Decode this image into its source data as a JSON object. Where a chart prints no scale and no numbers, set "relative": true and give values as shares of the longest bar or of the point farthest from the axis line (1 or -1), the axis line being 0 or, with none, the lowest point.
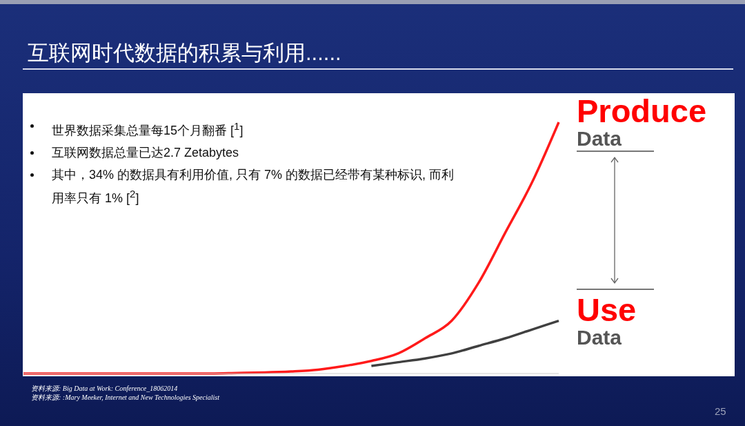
{
  "chart_data": {
    "type": "line",
    "title": "互联网时代数据的积累与利用......",
    "relative": true,
    "marker": "none",
    "legend": "right",
    "grid": false,
    "categories": [
      null,
      null,
      null,
      null,
      null,
      null,
      null,
      null,
      null,
      null,
      null,
      null,
      null,
      null,
      null,
      null,
      null,
      null,
      null,
      null,
      null
    ],
    "series": [
      {
        "name": "Use Data",
        "color": "#404040",
        "values": [
          null,
          null,
          null,
          null,
          null,
          null,
          null,
          null,
          null,
          null,
          null,
          null,
          null,
          0.03,
          0.045,
          0.06,
          0.08,
          0.11,
          0.14,
          0.175,
          0.21
        ]
      },
      {
        "name": "Produce Data",
        "color": "#ff1a1a",
        "values": [
          0,
          0,
          0,
          0,
          0,
          0,
          0,
          0,
          0.002,
          0.004,
          0.008,
          0.015,
          0.03,
          0.05,
          0.08,
          0.14,
          0.21,
          0.36,
          0.56,
          0.76,
          1
        ]
      }
    ],
    "annotations": [
      "世界数据采集总量每15个月翻番 [$^{1}$]",
      "互联网数据总量已达2.7 Zetabytes",
      "其中，34% 的数据具有利用价值, 只有 7% 的数据已经带有某种标识, 而利用率只有 1% [$^{2}$]",
      "资料来源: Big Data at Work: Conference_18062014",
      "资料来源: :Mary Meeker, Internet and New Technologies Specialist",
      "25"
    ]
  }
}
